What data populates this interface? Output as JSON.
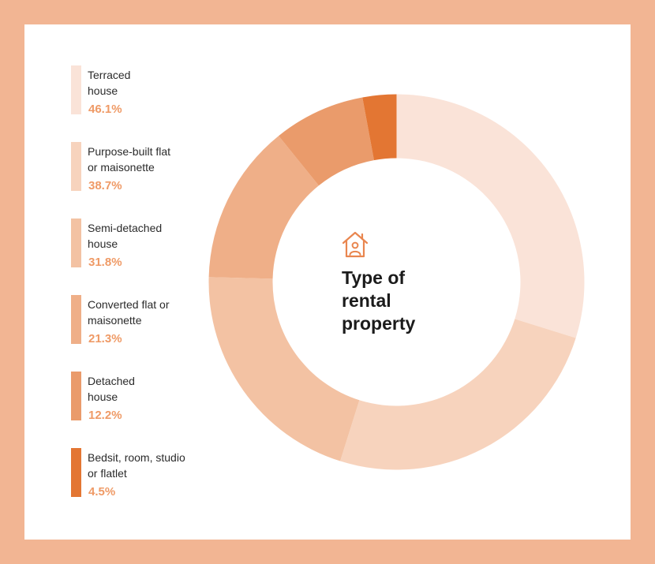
{
  "chart_data": {
    "type": "donut",
    "title": "Type of rental property",
    "categories": [
      "Terraced house",
      "Purpose-built flat or maisonette",
      "Semi-detached house",
      "Converted flat or maisonette",
      "Detached house",
      "Bedsit, room, studio or flatlet"
    ],
    "values": [
      46.1,
      38.7,
      31.8,
      21.3,
      12.2,
      4.5
    ],
    "unit": "%",
    "colors": [
      "#fae3d8",
      "#f7d3bd",
      "#f3c2a3",
      "#efaf88",
      "#ea9b6b",
      "#e37633"
    ],
    "legend_position": "left"
  },
  "legend": [
    {
      "label_line1": "Terraced",
      "label_line2": "house",
      "value": "46.1%",
      "color": "#fae3d8"
    },
    {
      "label_line1": "Purpose-built flat",
      "label_line2": "or maisonette",
      "value": "38.7%",
      "color": "#f7d3bd"
    },
    {
      "label_line1": "Semi-detached",
      "label_line2": "house",
      "value": "31.8%",
      "color": "#f3c2a3"
    },
    {
      "label_line1": "Converted flat or",
      "label_line2": "maisonette",
      "value": "21.3%",
      "color": "#efaf88"
    },
    {
      "label_line1": "Detached",
      "label_line2": "house",
      "value": "12.2%",
      "color": "#ea9b6b"
    },
    {
      "label_line1": "Bedsit, room, studio",
      "label_line2": "or flatlet",
      "value": "4.5%",
      "color": "#e37633"
    }
  ],
  "center": {
    "icon": "house-person-icon",
    "title_line1": "Type of",
    "title_line2": "rental",
    "title_line3": "property"
  },
  "theme": {
    "frame": "#f2b593",
    "accent": "#ef9a66",
    "icon": "#e9864f"
  }
}
